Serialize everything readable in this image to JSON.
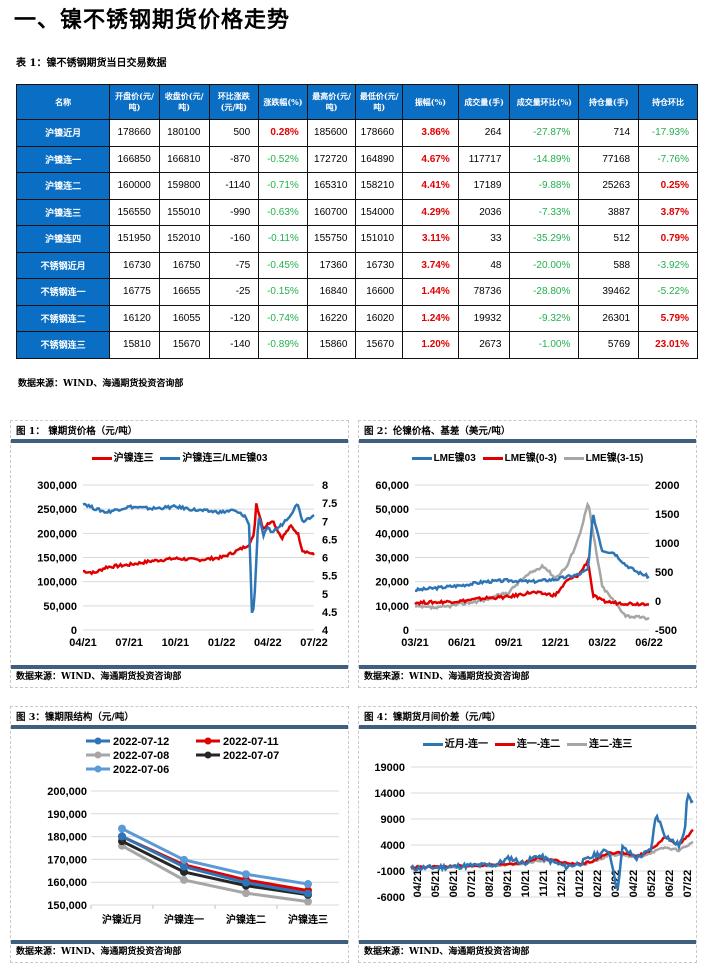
{
  "page": {
    "title": "一、镍不锈钢期货价格走势",
    "table_caption": "表 1：镍不锈钢期货当日交易数据",
    "source": "数据来源：WIND、海通期货投资咨询部"
  },
  "table": {
    "headers": [
      "名称",
      "开盘价(元/吨)",
      "收盘价(元/吨)",
      "环比涨跌(元/吨)",
      "涨跌幅(%)",
      "最高价(元/吨)",
      "最低价(元/吨)",
      "振幅(%)",
      "成交量(手)",
      "成交量环比(%)",
      "持仓量(手)",
      "持仓环比"
    ],
    "rows": [
      {
        "name": "沪镍近月",
        "open": "178660",
        "close": "180100",
        "chg": "500",
        "pct": "0.28%",
        "pct_dir": "red",
        "high": "185600",
        "low": "178660",
        "amp": "3.86%",
        "vol": "264",
        "vol_chg": "-27.87%",
        "vol_dir": "green",
        "oi": "714",
        "oi_chg": "-17.93%",
        "oi_dir": "green"
      },
      {
        "name": "沪镍连一",
        "open": "166850",
        "close": "166810",
        "chg": "-870",
        "pct": "-0.52%",
        "pct_dir": "green",
        "high": "172720",
        "low": "164890",
        "amp": "4.67%",
        "vol": "117717",
        "vol_chg": "-14.89%",
        "vol_dir": "green",
        "oi": "77168",
        "oi_chg": "-7.76%",
        "oi_dir": "green"
      },
      {
        "name": "沪镍连二",
        "open": "160000",
        "close": "159800",
        "chg": "-1140",
        "pct": "-0.71%",
        "pct_dir": "green",
        "high": "165310",
        "low": "158210",
        "amp": "4.41%",
        "vol": "17189",
        "vol_chg": "-9.88%",
        "vol_dir": "green",
        "oi": "25263",
        "oi_chg": "0.25%",
        "oi_dir": "red"
      },
      {
        "name": "沪镍连三",
        "open": "156550",
        "close": "155010",
        "chg": "-990",
        "pct": "-0.63%",
        "pct_dir": "green",
        "high": "160700",
        "low": "154000",
        "amp": "4.29%",
        "vol": "2036",
        "vol_chg": "-7.33%",
        "vol_dir": "green",
        "oi": "3887",
        "oi_chg": "3.87%",
        "oi_dir": "red"
      },
      {
        "name": "沪镍连四",
        "open": "151950",
        "close": "152010",
        "chg": "-160",
        "pct": "-0.11%",
        "pct_dir": "green",
        "high": "155750",
        "low": "151010",
        "amp": "3.11%",
        "vol": "33",
        "vol_chg": "-35.29%",
        "vol_dir": "green",
        "oi": "512",
        "oi_chg": "0.79%",
        "oi_dir": "red"
      },
      {
        "name": "不锈钢近月",
        "open": "16730",
        "close": "16750",
        "chg": "-75",
        "pct": "-0.45%",
        "pct_dir": "green",
        "high": "17360",
        "low": "16730",
        "amp": "3.74%",
        "vol": "48",
        "vol_chg": "-20.00%",
        "vol_dir": "green",
        "oi": "588",
        "oi_chg": "-3.92%",
        "oi_dir": "green"
      },
      {
        "name": "不锈钢连一",
        "open": "16775",
        "close": "16655",
        "chg": "-25",
        "pct": "-0.15%",
        "pct_dir": "green",
        "high": "16840",
        "low": "16600",
        "amp": "1.44%",
        "vol": "78736",
        "vol_chg": "-28.80%",
        "vol_dir": "green",
        "oi": "39462",
        "oi_chg": "-5.22%",
        "oi_dir": "green"
      },
      {
        "name": "不锈钢连二",
        "open": "16120",
        "close": "16055",
        "chg": "-120",
        "pct": "-0.74%",
        "pct_dir": "green",
        "high": "16220",
        "low": "16020",
        "amp": "1.24%",
        "vol": "19932",
        "vol_chg": "-9.32%",
        "vol_dir": "green",
        "oi": "26301",
        "oi_chg": "5.79%",
        "oi_dir": "red"
      },
      {
        "name": "不锈钢连三",
        "open": "15810",
        "close": "15670",
        "chg": "-140",
        "pct": "-0.89%",
        "pct_dir": "green",
        "high": "15860",
        "low": "15670",
        "amp": "1.20%",
        "vol": "2673",
        "vol_chg": "-1.00%",
        "vol_dir": "green",
        "oi": "5769",
        "oi_chg": "23.01%",
        "oi_dir": "red"
      }
    ]
  },
  "colors": {
    "header_blue": "#0b6ec5",
    "up_red": "#e00000",
    "down_green": "#22b14c",
    "panel_rule": "#3f5f7f"
  },
  "chart_data": [
    {
      "id": "fig1",
      "type": "line",
      "title": "图 1：  镍期货价格（元/吨）",
      "source": "数据来源：WIND、海通期货投资咨询部",
      "legend": [
        "沪镍连三",
        "沪镍连三/LME镍03"
      ],
      "categories": [
        "04/21",
        "07/21",
        "10/21",
        "01/22",
        "04/22",
        "07/22"
      ],
      "yticks_left": [
        "0",
        "50,000",
        "100,000",
        "150,000",
        "200,000",
        "250,000",
        "300,000"
      ],
      "yticks_right": [
        "4",
        "4.5",
        "5",
        "5.5",
        "6",
        "6.5",
        "7",
        "7.5",
        "8"
      ],
      "ylim_left": [
        0,
        300000
      ],
      "ylim_right": [
        4,
        8
      ],
      "series": [
        {
          "name": "沪镍连三",
          "axis": "left",
          "color": "#e00000",
          "x": [
            0,
            0.05,
            0.1,
            0.2,
            0.3,
            0.4,
            0.5,
            0.6,
            0.65,
            0.7,
            0.72,
            0.74,
            0.75,
            0.78,
            0.82,
            0.86,
            0.9,
            0.93,
            0.95,
            0.98,
            1.0
          ],
          "values": [
            122000,
            118000,
            130000,
            135000,
            143000,
            148000,
            145000,
            150000,
            160000,
            172000,
            178000,
            195000,
            262000,
            210000,
            228000,
            190000,
            215000,
            200000,
            165000,
            160000,
            155000
          ]
        },
        {
          "name": "沪镍连三/LME镍03",
          "axis": "right",
          "color": "#2e75b6",
          "x": [
            0,
            0.05,
            0.1,
            0.2,
            0.3,
            0.4,
            0.5,
            0.6,
            0.65,
            0.7,
            0.72,
            0.73,
            0.74,
            0.76,
            0.78,
            0.8,
            0.82,
            0.86,
            0.9,
            0.93,
            0.95,
            0.98,
            1.0
          ],
          "values": [
            7.5,
            7.35,
            7.25,
            7.4,
            7.35,
            7.4,
            7.3,
            7.25,
            7.3,
            7.15,
            6.9,
            4.5,
            4.6,
            7.2,
            6.6,
            6.8,
            6.7,
            6.9,
            7.2,
            7.5,
            7.0,
            7.1,
            7.2
          ]
        }
      ]
    },
    {
      "id": "fig2",
      "type": "line",
      "title": "图 2：伦镍价格、基差（美元/吨）",
      "source": "数据来源：WIND、海通期货投资咨询部",
      "legend": [
        "LME镍03",
        "LME镍(0-3)",
        "LME镍(3-15)"
      ],
      "categories": [
        "03/21",
        "06/21",
        "09/21",
        "12/21",
        "03/22",
        "06/22"
      ],
      "yticks_left": [
        "0",
        "10,000",
        "20,000",
        "30,000",
        "40,000",
        "50,000",
        "60,000"
      ],
      "yticks_right": [
        "-500",
        "0",
        "500",
        "1000",
        "1500",
        "2000"
      ],
      "ylim_left": [
        0,
        60000
      ],
      "ylim_right": [
        -500,
        2000
      ],
      "series": [
        {
          "name": "LME镍03",
          "axis": "left",
          "color": "#2e75b6",
          "x": [
            0,
            0.1,
            0.2,
            0.3,
            0.4,
            0.5,
            0.6,
            0.65,
            0.7,
            0.74,
            0.76,
            0.8,
            0.85,
            0.9,
            0.95,
            1.0
          ],
          "values": [
            16500,
            17500,
            18500,
            20000,
            20500,
            20000,
            21000,
            22000,
            23000,
            25000,
            48000,
            33000,
            32000,
            27000,
            24000,
            22000
          ]
        },
        {
          "name": "LME镍(0-3)",
          "axis": "right",
          "color": "#e00000",
          "x": [
            0,
            0.1,
            0.2,
            0.3,
            0.4,
            0.5,
            0.6,
            0.65,
            0.7,
            0.74,
            0.76,
            0.8,
            0.85,
            0.9,
            0.95,
            1.0
          ],
          "values": [
            -30,
            -20,
            0,
            50,
            70,
            150,
            100,
            350,
            450,
            700,
            100,
            0,
            -30,
            -40,
            -50,
            -40
          ]
        },
        {
          "name": "LME镍(3-15)",
          "axis": "right",
          "color": "#a6a6a6",
          "x": [
            0,
            0.1,
            0.2,
            0.3,
            0.4,
            0.45,
            0.5,
            0.55,
            0.6,
            0.65,
            0.7,
            0.74,
            0.76,
            0.8,
            0.85,
            0.9,
            0.95,
            1.0
          ],
          "values": [
            -100,
            -120,
            -50,
            20,
            150,
            350,
            500,
            600,
            400,
            600,
            1100,
            1700,
            1200,
            250,
            0,
            -250,
            -280,
            -300
          ]
        }
      ]
    },
    {
      "id": "fig3",
      "type": "line",
      "title": "图 3：镍期限结构（元/吨）",
      "source": "数据来源：WIND、海通期货投资咨询部",
      "categories": [
        "沪镍近月",
        "沪镍连一",
        "沪镍连二",
        "沪镍连三"
      ],
      "yticks": [
        "150,000",
        "160,000",
        "170,000",
        "180,000",
        "190,000",
        "200,000"
      ],
      "ylim": [
        150000,
        200000
      ],
      "series": [
        {
          "name": "2022-07-12",
          "color": "#2e75b6",
          "values": [
            180100,
            166810,
            159800,
            155010
          ]
        },
        {
          "name": "2022-07-11",
          "color": "#e00000",
          "values": [
            180000,
            167600,
            161000,
            156300
          ]
        },
        {
          "name": "2022-07-08",
          "color": "#a6a6a6",
          "values": [
            176000,
            161000,
            155200,
            151500
          ]
        },
        {
          "name": "2022-07-07",
          "color": "#262626",
          "values": [
            178000,
            164500,
            158500,
            154500
          ]
        },
        {
          "name": "2022-07-06",
          "color": "#5b9bd5",
          "values": [
            183500,
            169800,
            163500,
            159200
          ]
        }
      ]
    },
    {
      "id": "fig4",
      "type": "line",
      "title": "图 4：镍期货月间价差（元/吨）",
      "source": "数据来源：WIND、海通期货投资咨询部",
      "legend": [
        "近月-连一",
        "连一-连二",
        "连二-连三"
      ],
      "categories": [
        "04/21",
        "05/21",
        "06/21",
        "07/21",
        "08/21",
        "09/21",
        "10/21",
        "11/21",
        "12/21",
        "01/22",
        "02/22",
        "03/22",
        "04/22",
        "05/22",
        "06/22",
        "07/22"
      ],
      "yticks": [
        "-6000",
        "-1000",
        "4000",
        "9000",
        "14000",
        "19000"
      ],
      "ylim": [
        -6000,
        19000
      ],
      "series": [
        {
          "name": "近月-连一",
          "color": "#2e75b6",
          "x": [
            0,
            0.1,
            0.2,
            0.3,
            0.35,
            0.4,
            0.45,
            0.5,
            0.55,
            0.6,
            0.65,
            0.7,
            0.72,
            0.73,
            0.75,
            0.8,
            0.85,
            0.87,
            0.9,
            0.92,
            0.95,
            0.97,
            0.98,
            1.0
          ],
          "values": [
            -500,
            -300,
            0,
            200,
            1500,
            500,
            2000,
            800,
            -200,
            500,
            2000,
            3000,
            -1000,
            -5500,
            3500,
            1500,
            3000,
            10000,
            6000,
            5000,
            4000,
            6000,
            14500,
            12000
          ]
        },
        {
          "name": "连一-连二",
          "color": "#e00000",
          "x": [
            0,
            0.1,
            0.2,
            0.3,
            0.4,
            0.45,
            0.5,
            0.55,
            0.6,
            0.65,
            0.7,
            0.75,
            0.8,
            0.85,
            0.9,
            0.95,
            1.0
          ],
          "values": [
            -300,
            -200,
            0,
            200,
            600,
            1500,
            1200,
            500,
            300,
            1000,
            2500,
            2500,
            1800,
            3000,
            5500,
            4000,
            6800
          ]
        },
        {
          "name": "连二-连三",
          "color": "#a6a6a6",
          "x": [
            0,
            0.1,
            0.2,
            0.3,
            0.4,
            0.45,
            0.5,
            0.55,
            0.6,
            0.65,
            0.7,
            0.75,
            0.8,
            0.85,
            0.9,
            0.95,
            1.0
          ],
          "values": [
            -400,
            -300,
            -100,
            100,
            500,
            1000,
            900,
            300,
            200,
            800,
            2000,
            2200,
            1500,
            2500,
            3500,
            3000,
            4500
          ]
        }
      ]
    }
  ]
}
